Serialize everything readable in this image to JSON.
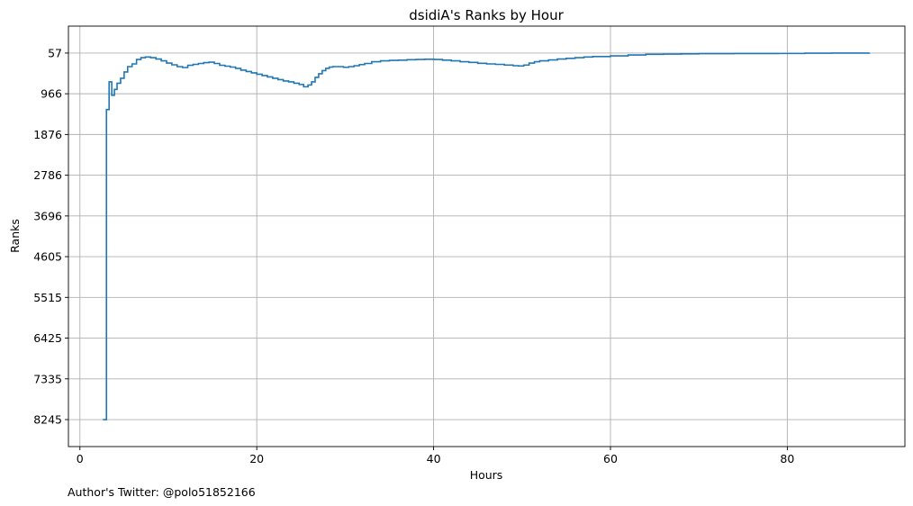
{
  "chart_data": {
    "type": "line",
    "title": "dsidiA's Ranks by Hour",
    "xlabel": "Hours",
    "ylabel": "Ranks",
    "xlim": [
      -1.3,
      93.3
    ],
    "ylim": [
      8848,
      -545
    ],
    "y_inverted": true,
    "xticks": [
      0,
      20,
      40,
      60,
      80
    ],
    "yticks": [
      57,
      966,
      1876,
      2786,
      3696,
      4605,
      5515,
      6425,
      7335,
      8245
    ],
    "grid": true,
    "step": true,
    "series": [
      {
        "color": "#1f77b4",
        "x": [
          2.6,
          3.0,
          3.3,
          3.6,
          3.9,
          4.2,
          4.6,
          5.0,
          5.4,
          5.9,
          6.4,
          6.9,
          7.4,
          8.0,
          8.6,
          9.2,
          9.8,
          10.4,
          11.0,
          11.6,
          12.2,
          12.8,
          13.4,
          14.0,
          14.6,
          15.2,
          15.8,
          16.4,
          17.0,
          17.6,
          18.2,
          18.8,
          19.4,
          20.0,
          20.6,
          21.2,
          21.8,
          22.4,
          23.0,
          23.6,
          24.2,
          24.8,
          25.3,
          25.8,
          26.2,
          26.6,
          27.0,
          27.4,
          27.8,
          28.2,
          28.6,
          29.2,
          29.8,
          30.4,
          31.0,
          31.6,
          32.2,
          33.0,
          34.0,
          35.0,
          36.0,
          37.0,
          38.0,
          39.0,
          40.0,
          41.0,
          42.0,
          43.0,
          44.0,
          45.0,
          46.0,
          47.0,
          48.0,
          49.0,
          49.6,
          50.2,
          50.8,
          51.4,
          52.0,
          53.0,
          54.0,
          55.0,
          56.0,
          57.0,
          58.0,
          60.0,
          62.0,
          64.0,
          66.0,
          68.0,
          70.0,
          72.0,
          74.0,
          76.0,
          78.0,
          79.0,
          82.0,
          85.0,
          89.3
        ],
        "y": [
          8245,
          1320,
          700,
          1000,
          870,
          730,
          620,
          480,
          360,
          300,
          200,
          160,
          145,
          160,
          190,
          230,
          280,
          320,
          360,
          380,
          330,
          310,
          290,
          270,
          260,
          290,
          330,
          350,
          370,
          400,
          440,
          470,
          500,
          530,
          560,
          590,
          620,
          650,
          680,
          700,
          730,
          760,
          810,
          770,
          700,
          600,
          520,
          450,
          400,
          370,
          360,
          360,
          375,
          360,
          340,
          315,
          290,
          250,
          230,
          220,
          215,
          205,
          200,
          195,
          200,
          215,
          230,
          250,
          265,
          285,
          300,
          310,
          325,
          340,
          345,
          325,
          280,
          250,
          230,
          210,
          190,
          175,
          160,
          145,
          135,
          120,
          100,
          85,
          80,
          75,
          70,
          70,
          68,
          68,
          67,
          66,
          60,
          58,
          57
        ]
      }
    ]
  },
  "footer": {
    "author_text": "Author's Twitter: @polo51852166"
  }
}
